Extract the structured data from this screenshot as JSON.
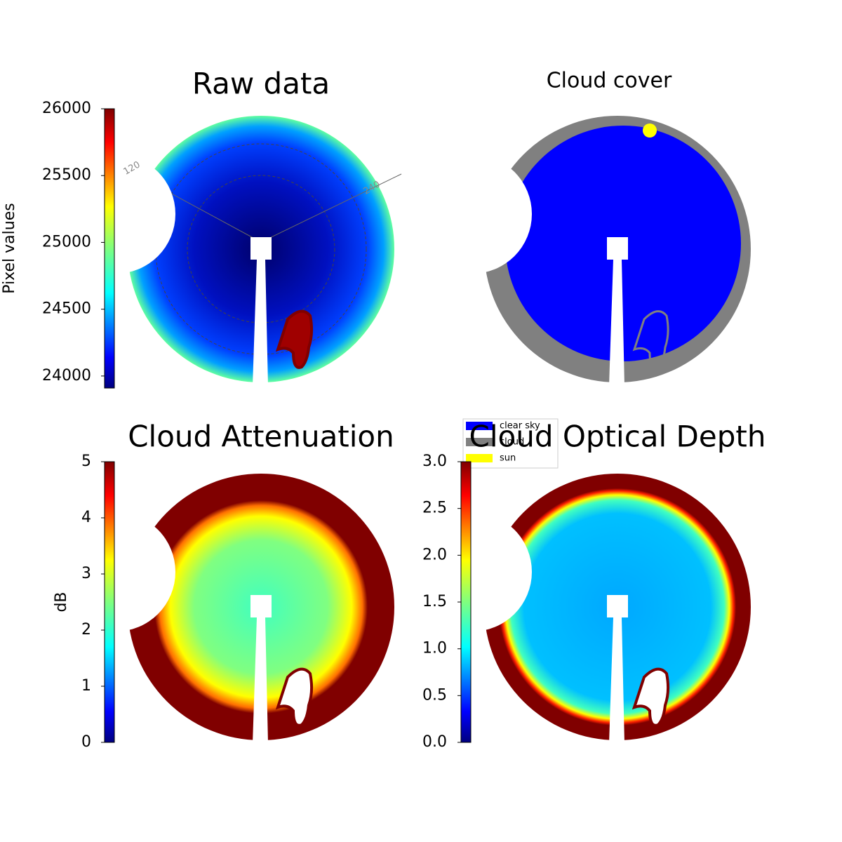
{
  "chart_data": [
    {
      "type": "image",
      "title": "Raw data",
      "ylabel": "Pixel values",
      "ylim": [
        23910,
        26000
      ],
      "yticks": [
        24000,
        24500,
        25000,
        25500,
        26000
      ],
      "annotations": [
        "120",
        "240"
      ]
    },
    {
      "type": "image",
      "title": "Cloud cover",
      "series": [
        {
          "name": "clear sky",
          "color": "#0000ff"
        },
        {
          "name": "cloud",
          "color": "#808080"
        },
        {
          "name": "sun",
          "color": "#ffff00"
        }
      ]
    },
    {
      "type": "image",
      "title": "Cloud Attenuation",
      "ylabel": "dB",
      "ylim": [
        0,
        5
      ],
      "yticks": [
        0,
        1,
        2,
        3,
        4,
        5
      ]
    },
    {
      "type": "image",
      "title": "Cloud Optical Depth",
      "ylim": [
        0,
        3
      ],
      "yticks": [
        {
          "value": 0,
          "label": "0.0"
        },
        0.5,
        {
          "value": 1,
          "label": "1.0"
        },
        1.5,
        {
          "value": 2,
          "label": "2.0"
        },
        2.5,
        {
          "value": 3,
          "label": "3.0"
        }
      ]
    }
  ]
}
